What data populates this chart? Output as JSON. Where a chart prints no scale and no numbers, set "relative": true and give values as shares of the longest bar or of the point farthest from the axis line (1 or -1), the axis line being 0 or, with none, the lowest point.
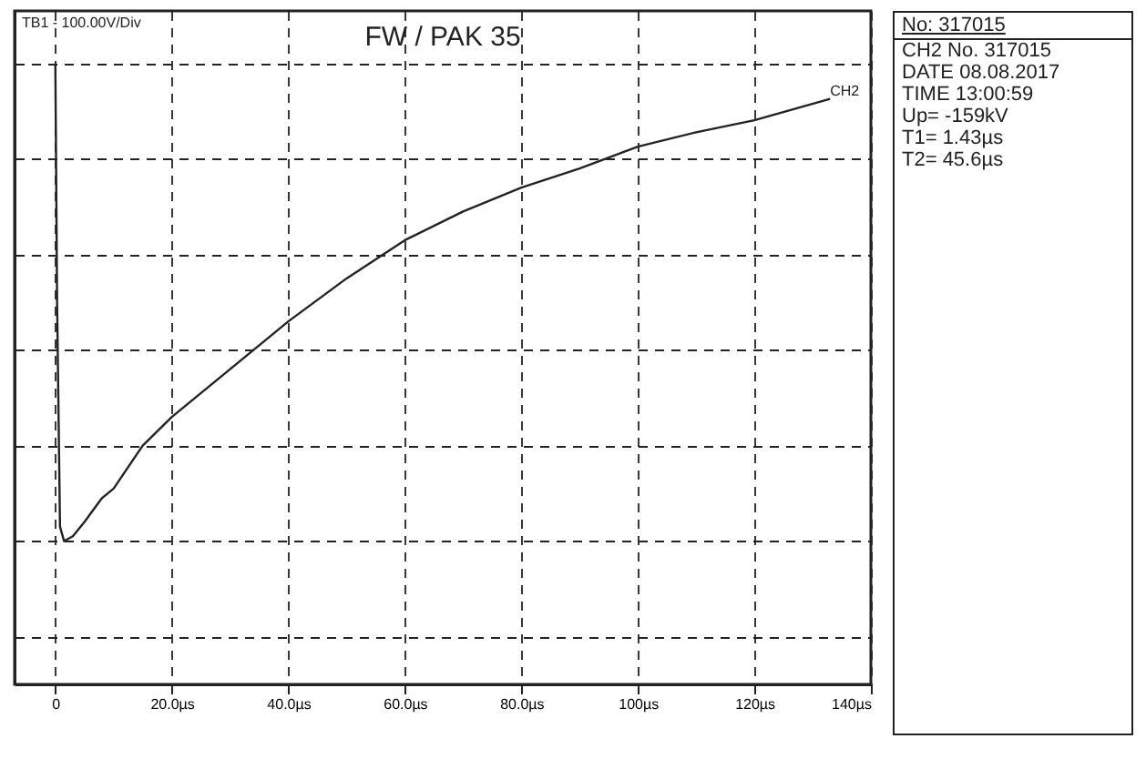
{
  "chart_data": {
    "type": "line",
    "title": "FW / PAK 35",
    "relative": true,
    "grid": true,
    "annotations": [
      "TB1 - 100.00V/Div",
      "No: 317015",
      "CH2 No. 317015",
      "DATE 08.08.2017",
      "TIME 13:00:59",
      "Up= -159kV",
      "T1= 1.43µs",
      "T2= 45.6µs"
    ],
    "xlim": [
      -7,
      140
    ],
    "xticks": [
      0,
      {
        "value": 20,
        "label": "20.0µs"
      },
      {
        "value": 40,
        "label": "40.0µs"
      },
      {
        "value": 60,
        "label": "60.0µs"
      },
      {
        "value": 80,
        "label": "80.0µs"
      },
      {
        "value": 100,
        "label": "100µs"
      },
      {
        "value": 120,
        "label": "120µs"
      },
      {
        "value": 140,
        "label": "140µs"
      }
    ],
    "series": [
      {
        "name": "CH2",
        "color": "#222222",
        "x": [
          0,
          0.3,
          0.8,
          1.5,
          3,
          5,
          8,
          10,
          15,
          20,
          30,
          40,
          50,
          60,
          70,
          80,
          90,
          100,
          110,
          120,
          133
        ],
        "values": [
          0,
          -0.5,
          -0.97,
          -1,
          -0.99,
          -0.96,
          -0.91,
          -0.89,
          -0.8,
          -0.74,
          -0.64,
          -0.54,
          -0.45,
          -0.37,
          -0.31,
          -0.26,
          -0.22,
          -0.174,
          -0.144,
          -0.119,
          -0.074
        ]
      }
    ]
  }
}
